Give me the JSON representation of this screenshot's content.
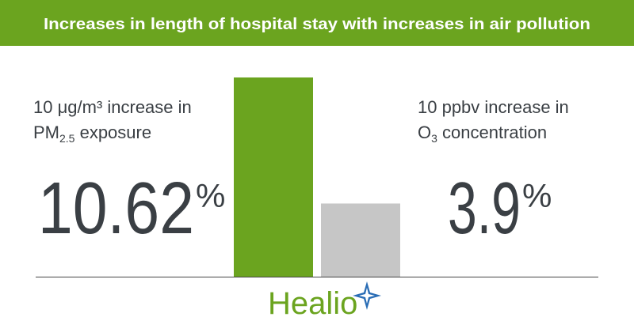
{
  "chart_data": {
    "type": "bar",
    "title": "Increases in length of hospital stay with increases in air pollution",
    "categories": [
      {
        "line1": "10 μg/m³ increase in",
        "line2": "PM",
        "sub": "2.5",
        "rest": " exposure"
      },
      {
        "line1": "10 ppbv increase in",
        "line2": "O",
        "sub": "3",
        "rest": " concentration"
      }
    ],
    "values": [
      10.62,
      3.9
    ],
    "unit": "%",
    "colors": [
      "#6ba41f",
      "#c6c6c6"
    ],
    "header_color": "#6ba41f",
    "logo": "Healio"
  }
}
